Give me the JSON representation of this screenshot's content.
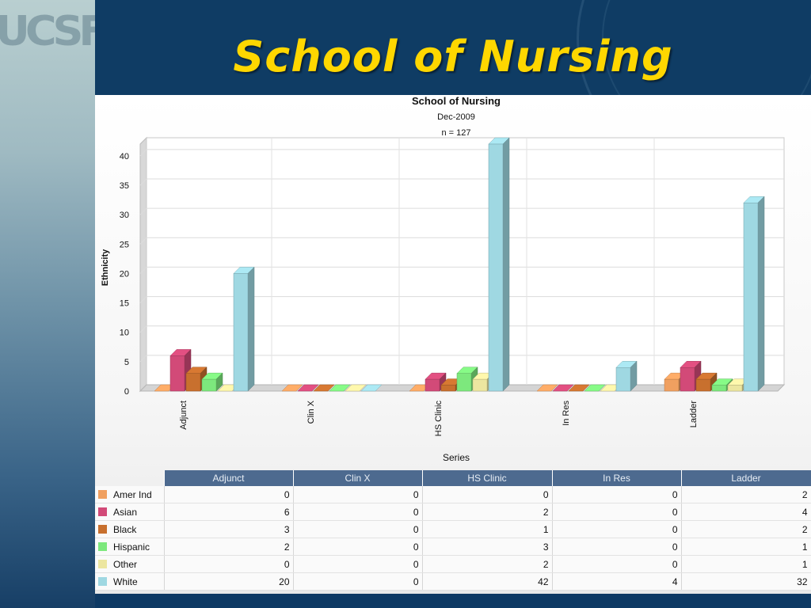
{
  "slide": {
    "title": "School of Nursing",
    "logo": "UCSF"
  },
  "chart_data": {
    "type": "bar",
    "title": "School of Nursing",
    "subtitle": "Dec-2009",
    "subtitle2": "n = 127",
    "xlabel": "Series",
    "ylabel": "Ethnicity",
    "ylim": [
      0,
      42
    ],
    "yticks": [
      0,
      5,
      10,
      15,
      20,
      25,
      30,
      35,
      40
    ],
    "grid": true,
    "categories": [
      "Adjunct",
      "Clin X",
      "HS Clinic",
      "In Res",
      "Ladder"
    ],
    "series": [
      {
        "name": "Amer Ind",
        "color": "#f0a060",
        "values": [
          0,
          0,
          0,
          0,
          2
        ]
      },
      {
        "name": "Asian",
        "color": "#d24a78",
        "values": [
          6,
          0,
          2,
          0,
          4
        ]
      },
      {
        "name": "Black",
        "color": "#c8702e",
        "values": [
          3,
          0,
          1,
          0,
          2
        ]
      },
      {
        "name": "Hispanic",
        "color": "#7de87d",
        "values": [
          2,
          0,
          3,
          0,
          1
        ]
      },
      {
        "name": "Other",
        "color": "#ece6a0",
        "values": [
          0,
          0,
          2,
          0,
          1
        ]
      },
      {
        "name": "White",
        "color": "#9fd8e2",
        "values": [
          20,
          0,
          42,
          4,
          32
        ]
      }
    ]
  }
}
